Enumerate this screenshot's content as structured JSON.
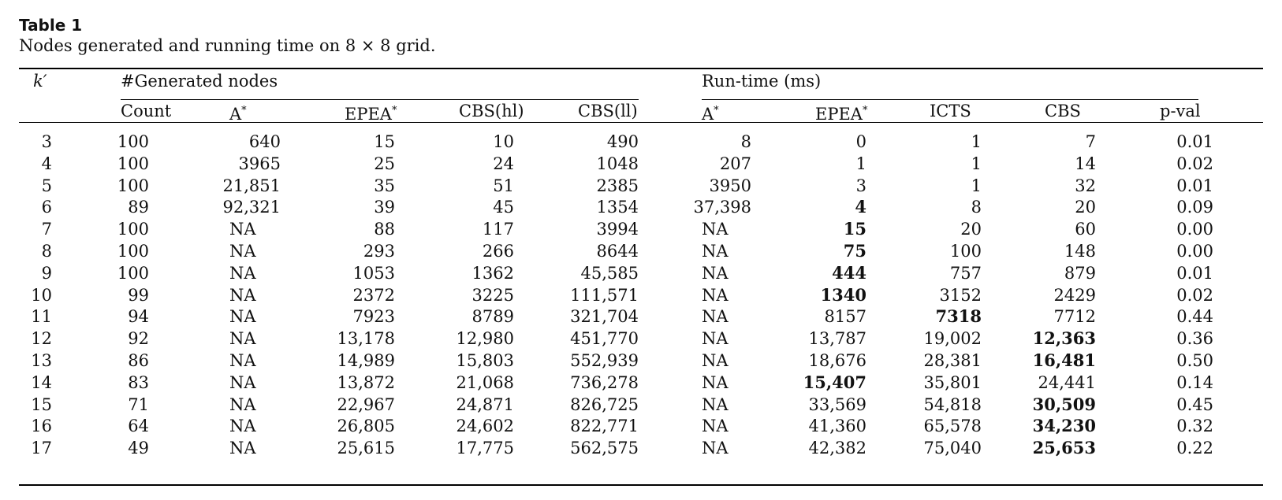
{
  "caption": {
    "title": "Table 1",
    "text": "Nodes generated and running time on 8 × 8 grid."
  },
  "header": {
    "k_label": "k′",
    "group_nodes": "#Generated nodes",
    "group_runtime": "Run-time (ms)",
    "columns": [
      "Count",
      "A*",
      "EPEA*",
      "CBS(hl)",
      "CBS(ll)",
      "A*",
      "EPEA*",
      "ICTS",
      "CBS",
      "p-val"
    ]
  },
  "rows": [
    {
      "k": "3",
      "cells": [
        "100",
        "640",
        "15",
        "10",
        "490",
        "8",
        "0",
        "1",
        "7",
        "0.01"
      ],
      "bold": []
    },
    {
      "k": "4",
      "cells": [
        "100",
        "3965",
        "25",
        "24",
        "1048",
        "207",
        "1",
        "1",
        "14",
        "0.02"
      ],
      "bold": []
    },
    {
      "k": "5",
      "cells": [
        "100",
        "21,851",
        "35",
        "51",
        "2385",
        "3950",
        "3",
        "1",
        "32",
        "0.01"
      ],
      "bold": []
    },
    {
      "k": "6",
      "cells": [
        "89",
        "92,321",
        "39",
        "45",
        "1354",
        "37,398",
        "4",
        "8",
        "20",
        "0.09"
      ],
      "bold": [
        6
      ]
    },
    {
      "k": "7",
      "cells": [
        "100",
        "NA",
        "88",
        "117",
        "3994",
        "NA",
        "15",
        "20",
        "60",
        "0.00"
      ],
      "bold": [
        6
      ]
    },
    {
      "k": "8",
      "cells": [
        "100",
        "NA",
        "293",
        "266",
        "8644",
        "NA",
        "75",
        "100",
        "148",
        "0.00"
      ],
      "bold": [
        6
      ]
    },
    {
      "k": "9",
      "cells": [
        "100",
        "NA",
        "1053",
        "1362",
        "45,585",
        "NA",
        "444",
        "757",
        "879",
        "0.01"
      ],
      "bold": [
        6
      ]
    },
    {
      "k": "10",
      "cells": [
        "99",
        "NA",
        "2372",
        "3225",
        "111,571",
        "NA",
        "1340",
        "3152",
        "2429",
        "0.02"
      ],
      "bold": [
        6
      ]
    },
    {
      "k": "11",
      "cells": [
        "94",
        "NA",
        "7923",
        "8789",
        "321,704",
        "NA",
        "8157",
        "7318",
        "7712",
        "0.44"
      ],
      "bold": [
        7
      ]
    },
    {
      "k": "12",
      "cells": [
        "92",
        "NA",
        "13,178",
        "12,980",
        "451,770",
        "NA",
        "13,787",
        "19,002",
        "12,363",
        "0.36"
      ],
      "bold": [
        8
      ]
    },
    {
      "k": "13",
      "cells": [
        "86",
        "NA",
        "14,989",
        "15,803",
        "552,939",
        "NA",
        "18,676",
        "28,381",
        "16,481",
        "0.50"
      ],
      "bold": [
        8
      ]
    },
    {
      "k": "14",
      "cells": [
        "83",
        "NA",
        "13,872",
        "21,068",
        "736,278",
        "NA",
        "15,407",
        "35,801",
        "24,441",
        "0.14"
      ],
      "bold": [
        6
      ]
    },
    {
      "k": "15",
      "cells": [
        "71",
        "NA",
        "22,967",
        "24,871",
        "826,725",
        "NA",
        "33,569",
        "54,818",
        "30,509",
        "0.45"
      ],
      "bold": [
        8
      ]
    },
    {
      "k": "16",
      "cells": [
        "64",
        "NA",
        "26,805",
        "24,602",
        "822,771",
        "NA",
        "41,360",
        "65,578",
        "34,230",
        "0.32"
      ],
      "bold": [
        8
      ]
    },
    {
      "k": "17",
      "cells": [
        "49",
        "NA",
        "25,615",
        "17,775",
        "562,575",
        "NA",
        "42,382",
        "75,040",
        "25,653",
        "0.22"
      ],
      "bold": [
        8
      ]
    }
  ]
}
